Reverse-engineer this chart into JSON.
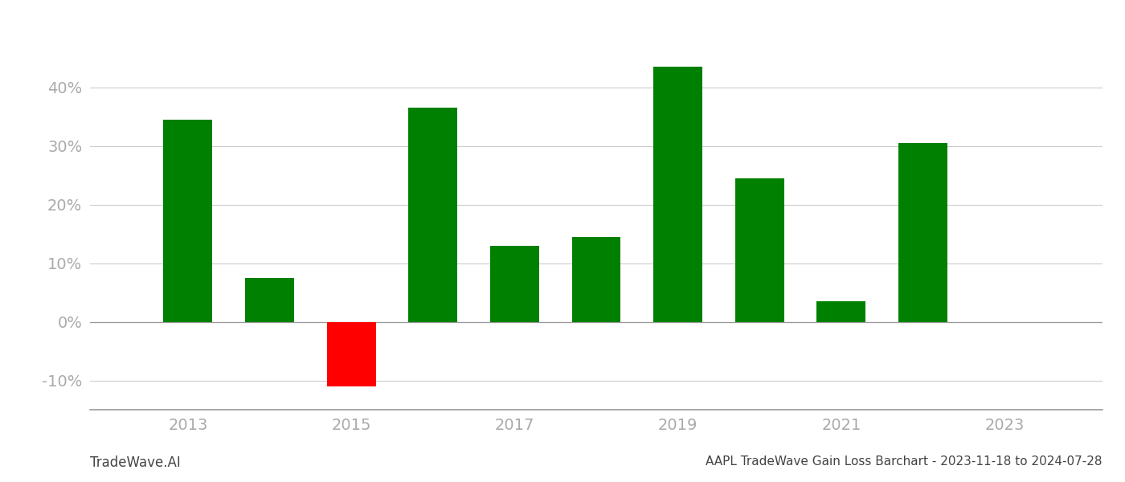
{
  "years": [
    2013,
    2014,
    2015,
    2016,
    2017,
    2018,
    2019,
    2020,
    2021,
    2022
  ],
  "values": [
    34.5,
    7.5,
    -11.0,
    36.5,
    13.0,
    14.5,
    43.5,
    24.5,
    3.5,
    30.5
  ],
  "bar_width": 0.6,
  "color_positive": "#008000",
  "color_negative": "#ff0000",
  "background_color": "#ffffff",
  "grid_color": "#cccccc",
  "title": "AAPL TradeWave Gain Loss Barchart - 2023-11-18 to 2024-07-28",
  "watermark": "TradeWave.AI",
  "xlim": [
    2011.8,
    2024.2
  ],
  "ylim": [
    -15,
    50
  ],
  "yticks": [
    -10,
    0,
    10,
    20,
    30,
    40
  ],
  "xticks": [
    2013,
    2015,
    2017,
    2019,
    2021,
    2023
  ],
  "title_fontsize": 11,
  "watermark_fontsize": 12,
  "tick_fontsize": 14,
  "axis_color": "#999999",
  "tick_color": "#aaaaaa"
}
